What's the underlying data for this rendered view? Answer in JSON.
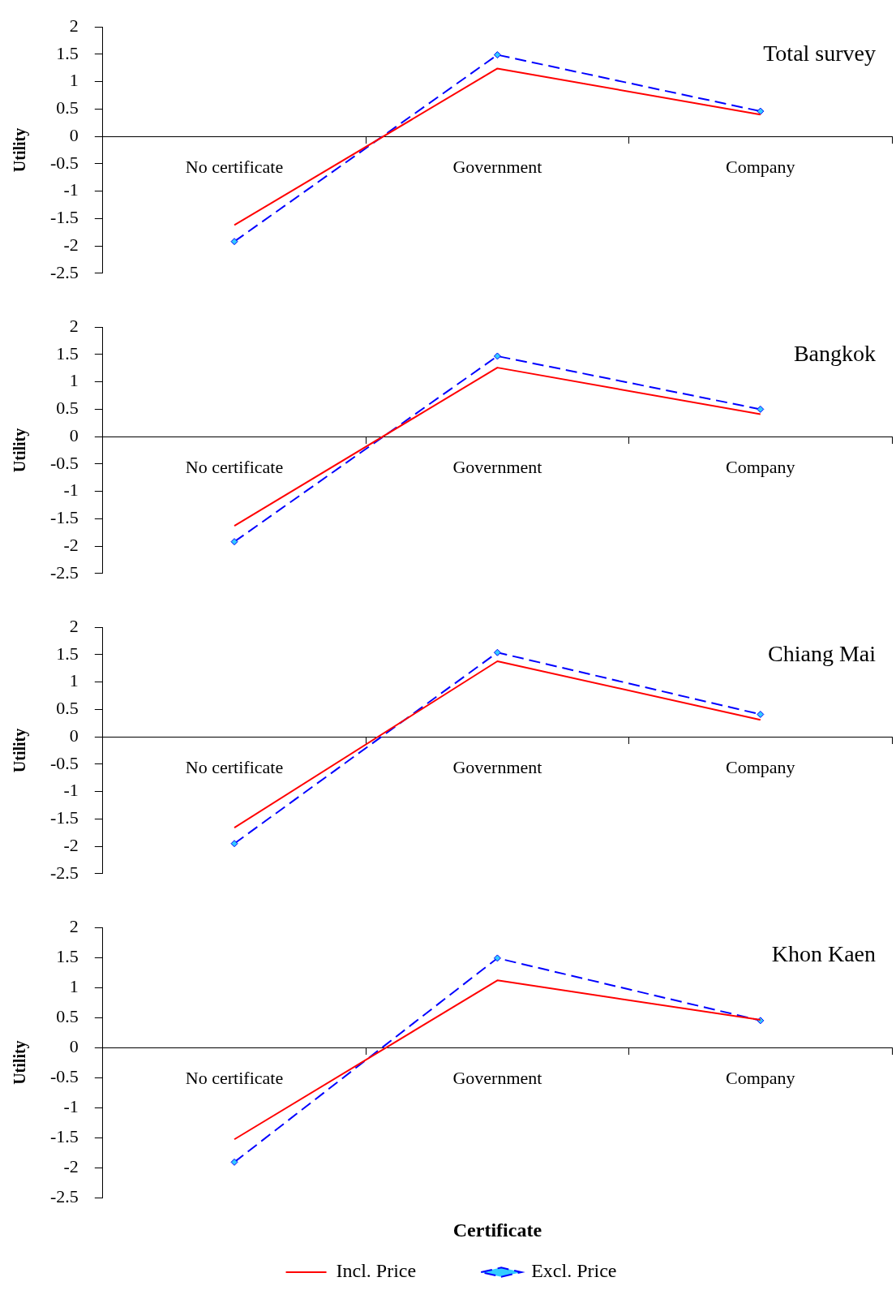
{
  "chart_data": [
    {
      "type": "line",
      "title": "Total survey",
      "ylabel": "Utility",
      "categories": [
        "No certificate",
        "Government",
        "Company"
      ],
      "ylim": [
        -2.5,
        2
      ],
      "yticks": [
        -2.5,
        -2,
        -1.5,
        -1,
        -0.5,
        0,
        0.5,
        1,
        1.5,
        2
      ],
      "grid": false,
      "legend": false,
      "series": [
        {
          "color": "#ff0000",
          "values": [
            -1.62,
            1.24,
            0.4
          ],
          "marker": "none",
          "line_style": "solid"
        },
        {
          "color": "#0000ff",
          "values": [
            -1.92,
            1.49,
            0.46
          ],
          "marker": "diamond",
          "line_style": "dashed"
        }
      ]
    },
    {
      "type": "line",
      "title": "Bangkok",
      "ylabel": "Utility",
      "categories": [
        "No certificate",
        "Government",
        "Company"
      ],
      "ylim": [
        -2.5,
        2
      ],
      "yticks": [
        -2.5,
        -2,
        -1.5,
        -1,
        -0.5,
        0,
        0.5,
        1,
        1.5,
        2
      ],
      "grid": false,
      "legend": false,
      "series": [
        {
          "color": "#ff0000",
          "values": [
            -1.63,
            1.26,
            0.41
          ],
          "marker": "none",
          "line_style": "solid"
        },
        {
          "color": "#0000ff",
          "values": [
            -1.92,
            1.47,
            0.5
          ],
          "marker": "diamond",
          "line_style": "dashed"
        }
      ]
    },
    {
      "type": "line",
      "title": "Chiang Mai",
      "ylabel": "Utility",
      "categories": [
        "No certificate",
        "Government",
        "Company"
      ],
      "ylim": [
        -2.5,
        2
      ],
      "yticks": [
        -2.5,
        -2,
        -1.5,
        -1,
        -0.5,
        0,
        0.5,
        1,
        1.5,
        2
      ],
      "grid": false,
      "legend": false,
      "series": [
        {
          "color": "#ff0000",
          "values": [
            -1.66,
            1.38,
            0.31
          ],
          "marker": "none",
          "line_style": "solid"
        },
        {
          "color": "#0000ff",
          "values": [
            -1.95,
            1.54,
            0.41
          ],
          "marker": "diamond",
          "line_style": "dashed"
        }
      ]
    },
    {
      "type": "line",
      "title": "Khon Kaen",
      "ylabel": "Utility",
      "xlabel": "Certificate",
      "categories": [
        "No certificate",
        "Government",
        "Company"
      ],
      "ylim": [
        -2.5,
        2
      ],
      "yticks": [
        -2.5,
        -2,
        -1.5,
        -1,
        -0.5,
        0,
        0.5,
        1,
        1.5,
        2
      ],
      "grid": false,
      "legend": "bottom",
      "series": [
        {
          "name": "Incl. Price",
          "color": "#ff0000",
          "values": [
            -1.53,
            1.12,
            0.46
          ],
          "marker": "none",
          "line_style": "solid"
        },
        {
          "name": "Excl. Price",
          "color": "#0000ff",
          "values": [
            -1.91,
            1.49,
            0.45
          ],
          "marker": "diamond",
          "line_style": "dashed"
        }
      ]
    }
  ]
}
